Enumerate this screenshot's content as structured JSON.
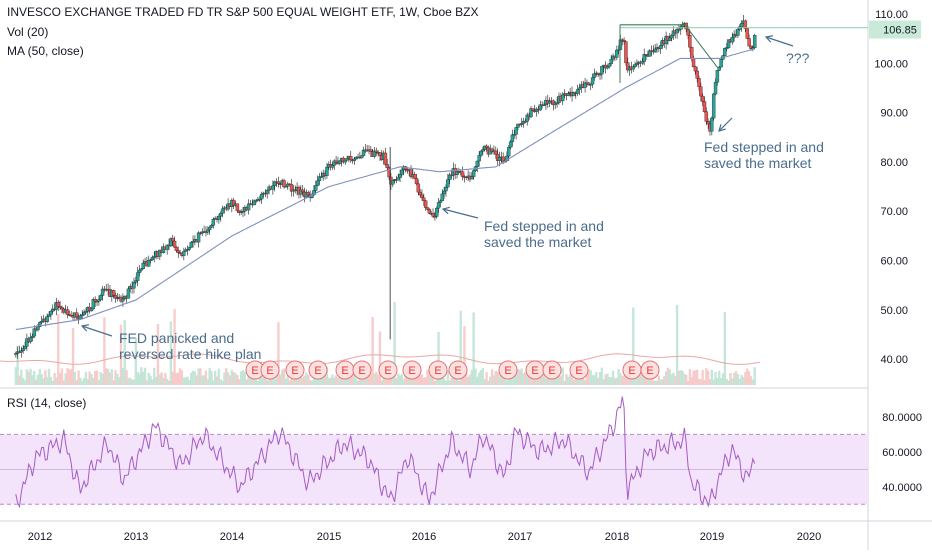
{
  "header": {
    "title": "INVESCO EXCHANGE TRADED FD TR S&P 500 EQUAL WEIGHT ETF, 1W, Cboe BZX",
    "vol_label": "Vol (20)",
    "ma_label": "MA (50, close)",
    "rsi_label": "RSI (14, close)"
  },
  "annotations": {
    "fed_panicked_1": "FED panicked and",
    "fed_panicked_2": "reversed rate hike plan",
    "fed_2016_1": "Fed stepped in and",
    "fed_2016_2": "saved the market",
    "fed_2018_1": "Fed stepped in and",
    "fed_2018_2": "saved the market",
    "question": "???"
  },
  "earnings_marker": "E",
  "colors": {
    "up": "#26a69a",
    "down": "#ef5350",
    "ma": "#7f8fbf",
    "rsi": "#a35cc4",
    "rsi_band": "#f4e4fb",
    "annotation": "#4a6d8c",
    "price_tag": "#c9ead9",
    "earnings_fill": "#fde0e0",
    "earnings_stroke": "#e57373"
  },
  "chart_data": [
    {
      "type": "candlestick",
      "interval": "1W",
      "ylim": [
        35,
        112
      ],
      "yticks": [
        "110.00",
        "100.00",
        "90.00",
        "80.00",
        "70.00",
        "60.00",
        "50.00",
        "40.00"
      ],
      "xticks": [
        "2012",
        "2013",
        "2014",
        "2015",
        "2016",
        "2017",
        "2018",
        "2019",
        "2020"
      ],
      "last_price_label": "106.85",
      "last_price": 106.85,
      "close_series": [
        {
          "date": "2011-10-01",
          "close": 41
        },
        {
          "date": "2011-12-01",
          "close": 45
        },
        {
          "date": "2012-03-01",
          "close": 51
        },
        {
          "date": "2012-06-01",
          "close": 48
        },
        {
          "date": "2012-09-01",
          "close": 54
        },
        {
          "date": "2012-11-15",
          "close": 52
        },
        {
          "date": "2013-01-15",
          "close": 58
        },
        {
          "date": "2013-05-15",
          "close": 64
        },
        {
          "date": "2013-06-20",
          "close": 61
        },
        {
          "date": "2013-09-15",
          "close": 66
        },
        {
          "date": "2013-12-31",
          "close": 72
        },
        {
          "date": "2014-02-01",
          "close": 70
        },
        {
          "date": "2014-06-30",
          "close": 76
        },
        {
          "date": "2014-10-15",
          "close": 73
        },
        {
          "date": "2014-12-31",
          "close": 79
        },
        {
          "date": "2015-06-01",
          "close": 82
        },
        {
          "date": "2015-08-01",
          "close": 81
        },
        {
          "date": "2015-08-24",
          "close": 76
        },
        {
          "date": "2015-11-01",
          "close": 79
        },
        {
          "date": "2016-01-20",
          "close": 70
        },
        {
          "date": "2016-02-11",
          "close": 69
        },
        {
          "date": "2016-04-15",
          "close": 78
        },
        {
          "date": "2016-06-27",
          "close": 77
        },
        {
          "date": "2016-08-15",
          "close": 83
        },
        {
          "date": "2016-11-03",
          "close": 80
        },
        {
          "date": "2016-12-15",
          "close": 87
        },
        {
          "date": "2017-03-01",
          "close": 91
        },
        {
          "date": "2017-06-15",
          "close": 93
        },
        {
          "date": "2017-09-15",
          "close": 96
        },
        {
          "date": "2017-12-31",
          "close": 102
        },
        {
          "date": "2018-01-26",
          "close": 106
        },
        {
          "date": "2018-02-08",
          "close": 98
        },
        {
          "date": "2018-05-01",
          "close": 102
        },
        {
          "date": "2018-09-20",
          "close": 108
        },
        {
          "date": "2018-10-25",
          "close": 99
        },
        {
          "date": "2018-12-24",
          "close": 86
        },
        {
          "date": "2019-01-15",
          "close": 97
        },
        {
          "date": "2019-03-01",
          "close": 104
        },
        {
          "date": "2019-04-30",
          "close": 108
        },
        {
          "date": "2019-05-31",
          "close": 102
        },
        {
          "date": "2019-06-15",
          "close": 106.85
        }
      ],
      "ma50_series": [
        {
          "date": "2011-10-01",
          "value": 46
        },
        {
          "date": "2012-06-01",
          "value": 48
        },
        {
          "date": "2013-01-01",
          "value": 52
        },
        {
          "date": "2014-01-01",
          "value": 65
        },
        {
          "date": "2015-01-01",
          "value": 75
        },
        {
          "date": "2015-10-01",
          "value": 79
        },
        {
          "date": "2016-03-01",
          "value": 78
        },
        {
          "date": "2016-10-01",
          "value": 79
        },
        {
          "date": "2017-06-01",
          "value": 87
        },
        {
          "date": "2018-02-01",
          "value": 95
        },
        {
          "date": "2018-09-01",
          "value": 101
        },
        {
          "date": "2019-02-01",
          "value": 101
        },
        {
          "date": "2019-06-15",
          "value": 103
        }
      ],
      "price_line": 107.2,
      "spike_low": {
        "date": "2015-08-24",
        "low": 44
      }
    },
    {
      "type": "line",
      "name": "RSI (14, close)",
      "ylim": [
        25,
        92
      ],
      "yticks": [
        "80.0000",
        "60.0000",
        "40.0000"
      ],
      "band": [
        30,
        70
      ],
      "midline": 50,
      "series": [
        {
          "date": "2011-10-01",
          "value": 30
        },
        {
          "date": "2011-12-15",
          "value": 57
        },
        {
          "date": "2012-04-01",
          "value": 67
        },
        {
          "date": "2012-06-01",
          "value": 38
        },
        {
          "date": "2012-09-15",
          "value": 65
        },
        {
          "date": "2012-11-15",
          "value": 44
        },
        {
          "date": "2013-03-15",
          "value": 75
        },
        {
          "date": "2013-06-20",
          "value": 52
        },
        {
          "date": "2013-09-15",
          "value": 70
        },
        {
          "date": "2014-02-01",
          "value": 40
        },
        {
          "date": "2014-06-30",
          "value": 72
        },
        {
          "date": "2014-10-15",
          "value": 42
        },
        {
          "date": "2015-03-01",
          "value": 65
        },
        {
          "date": "2015-06-01",
          "value": 56
        },
        {
          "date": "2015-08-24",
          "value": 32
        },
        {
          "date": "2015-11-01",
          "value": 58
        },
        {
          "date": "2016-01-20",
          "value": 32
        },
        {
          "date": "2016-04-15",
          "value": 66
        },
        {
          "date": "2016-06-27",
          "value": 50
        },
        {
          "date": "2016-08-15",
          "value": 70
        },
        {
          "date": "2016-11-03",
          "value": 45
        },
        {
          "date": "2016-12-15",
          "value": 72
        },
        {
          "date": "2017-03-15",
          "value": 60
        },
        {
          "date": "2017-06-15",
          "value": 67
        },
        {
          "date": "2017-09-15",
          "value": 48
        },
        {
          "date": "2017-12-15",
          "value": 74
        },
        {
          "date": "2018-01-26",
          "value": 91
        },
        {
          "date": "2018-02-08",
          "value": 38
        },
        {
          "date": "2018-05-01",
          "value": 60
        },
        {
          "date": "2018-09-20",
          "value": 67
        },
        {
          "date": "2018-10-15",
          "value": 42
        },
        {
          "date": "2018-12-24",
          "value": 30
        },
        {
          "date": "2019-01-15",
          "value": 40
        },
        {
          "date": "2019-02-15",
          "value": 52
        },
        {
          "date": "2019-03-15",
          "value": 62
        },
        {
          "date": "2019-05-15",
          "value": 44
        },
        {
          "date": "2019-06-15",
          "value": 58
        }
      ]
    }
  ]
}
